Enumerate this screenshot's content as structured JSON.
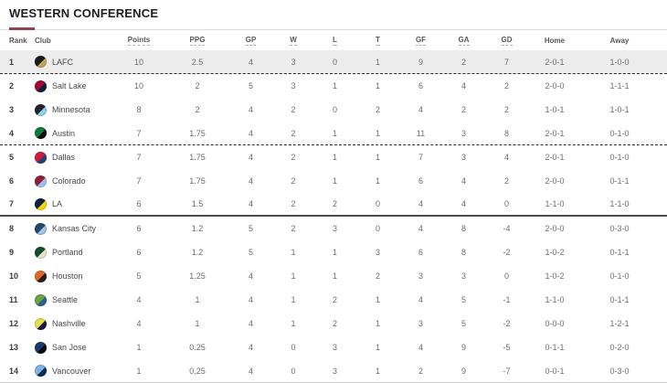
{
  "title": "WESTERN CONFERENCE",
  "accent_color": "#96424d",
  "columns": [
    {
      "key": "rank",
      "label": "Rank",
      "sortable": false
    },
    {
      "key": "club",
      "label": "Club",
      "sortable": false
    },
    {
      "key": "points",
      "label": "Points",
      "sortable": true
    },
    {
      "key": "ppg",
      "label": "PPG",
      "sortable": true
    },
    {
      "key": "gp",
      "label": "GP",
      "sortable": true
    },
    {
      "key": "w",
      "label": "W",
      "sortable": true
    },
    {
      "key": "l",
      "label": "L",
      "sortable": true
    },
    {
      "key": "t",
      "label": "T",
      "sortable": true
    },
    {
      "key": "gf",
      "label": "GF",
      "sortable": true
    },
    {
      "key": "ga",
      "label": "GA",
      "sortable": true
    },
    {
      "key": "gd",
      "label": "GD",
      "sortable": true
    },
    {
      "key": "home",
      "label": "Home",
      "sortable": false
    },
    {
      "key": "away",
      "label": "Away",
      "sortable": false
    }
  ],
  "rows": [
    {
      "rank": "1",
      "club": "LAFC",
      "badge": [
        "#1a1a1a",
        "#c8a15a"
      ],
      "points": "10",
      "ppg": "2.5",
      "gp": "4",
      "w": "3",
      "l": "0",
      "t": "1",
      "gf": "9",
      "ga": "2",
      "gd": "7",
      "home": "2-0-1",
      "away": "1-0-0",
      "highlight": true,
      "separator": "dashed"
    },
    {
      "rank": "2",
      "club": "Salt Lake",
      "badge": [
        "#a50531",
        "#0b2240"
      ],
      "points": "10",
      "ppg": "2",
      "gp": "5",
      "w": "3",
      "l": "1",
      "t": "1",
      "gf": "6",
      "ga": "4",
      "gd": "2",
      "home": "2-0-0",
      "away": "1-1-1",
      "highlight": false,
      "separator": ""
    },
    {
      "rank": "3",
      "club": "Minnesota",
      "badge": [
        "#22242c",
        "#8cd2f4"
      ],
      "points": "8",
      "ppg": "2",
      "gp": "4",
      "w": "2",
      "l": "0",
      "t": "2",
      "gf": "4",
      "ga": "2",
      "gd": "2",
      "home": "1-0-1",
      "away": "1-0-1",
      "highlight": false,
      "separator": ""
    },
    {
      "rank": "4",
      "club": "Austin",
      "badge": [
        "#0f7a3a",
        "#0c0c0c"
      ],
      "points": "7",
      "ppg": "1.75",
      "gp": "4",
      "w": "2",
      "l": "1",
      "t": "1",
      "gf": "11",
      "ga": "3",
      "gd": "8",
      "home": "2-0-1",
      "away": "0-1-0",
      "highlight": false,
      "separator": "dashed"
    },
    {
      "rank": "5",
      "club": "Dallas",
      "badge": [
        "#d11a3d",
        "#2a4076"
      ],
      "points": "7",
      "ppg": "1.75",
      "gp": "4",
      "w": "2",
      "l": "1",
      "t": "1",
      "gf": "7",
      "ga": "3",
      "gd": "4",
      "home": "2-0-1",
      "away": "0-1-0",
      "highlight": false,
      "separator": ""
    },
    {
      "rank": "6",
      "club": "Colorado",
      "badge": [
        "#8f1d3c",
        "#9cc2ea"
      ],
      "points": "7",
      "ppg": "1.75",
      "gp": "4",
      "w": "2",
      "l": "1",
      "t": "1",
      "gf": "6",
      "ga": "4",
      "gd": "2",
      "home": "2-0-0",
      "away": "0-1-1",
      "highlight": false,
      "separator": ""
    },
    {
      "rank": "7",
      "club": "LA",
      "badge": [
        "#0b2240",
        "#ffd200"
      ],
      "points": "6",
      "ppg": "1.5",
      "gp": "4",
      "w": "2",
      "l": "2",
      "t": "0",
      "gf": "4",
      "ga": "4",
      "gd": "0",
      "home": "1-1-0",
      "away": "1-1-0",
      "highlight": false,
      "separator": "solid"
    },
    {
      "rank": "8",
      "club": "Kansas City",
      "badge": [
        "#24476c",
        "#a3c1e0"
      ],
      "points": "6",
      "ppg": "1.2",
      "gp": "5",
      "w": "2",
      "l": "3",
      "t": "0",
      "gf": "4",
      "ga": "8",
      "gd": "-4",
      "home": "2-0-0",
      "away": "0-3-0",
      "highlight": false,
      "separator": ""
    },
    {
      "rank": "9",
      "club": "Portland",
      "badge": [
        "#0d4d2b",
        "#e9e3c2"
      ],
      "points": "6",
      "ppg": "1.2",
      "gp": "5",
      "w": "1",
      "l": "1",
      "t": "3",
      "gf": "6",
      "ga": "8",
      "gd": "-2",
      "home": "1-0-2",
      "away": "0-1-1",
      "highlight": false,
      "separator": ""
    },
    {
      "rank": "10",
      "club": "Houston",
      "badge": [
        "#e0662a",
        "#241f1f"
      ],
      "points": "5",
      "ppg": "1.25",
      "gp": "4",
      "w": "1",
      "l": "1",
      "t": "2",
      "gf": "3",
      "ga": "3",
      "gd": "0",
      "home": "1-0-2",
      "away": "0-1-0",
      "highlight": false,
      "separator": ""
    },
    {
      "rank": "11",
      "club": "Seattle",
      "badge": [
        "#6aa544",
        "#2c5e8f"
      ],
      "points": "4",
      "ppg": "1",
      "gp": "4",
      "w": "1",
      "l": "2",
      "t": "1",
      "gf": "4",
      "ga": "5",
      "gd": "-1",
      "home": "1-1-0",
      "away": "0-1-1",
      "highlight": false,
      "separator": ""
    },
    {
      "rank": "12",
      "club": "Nashville",
      "badge": [
        "#e6df4a",
        "#1f1646"
      ],
      "points": "4",
      "ppg": "1",
      "gp": "4",
      "w": "1",
      "l": "2",
      "t": "1",
      "gf": "3",
      "ga": "5",
      "gd": "-2",
      "home": "0-0-0",
      "away": "1-2-1",
      "highlight": false,
      "separator": ""
    },
    {
      "rank": "13",
      "club": "San Jose",
      "badge": [
        "#1b3a6b",
        "#0c0c0c"
      ],
      "points": "1",
      "ppg": "0.25",
      "gp": "4",
      "w": "0",
      "l": "3",
      "t": "1",
      "gf": "4",
      "ga": "9",
      "gd": "-5",
      "home": "0-1-1",
      "away": "0-2-0",
      "highlight": false,
      "separator": ""
    },
    {
      "rank": "14",
      "club": "Vancouver",
      "badge": [
        "#7fb2e5",
        "#0b2c56"
      ],
      "points": "1",
      "ppg": "0.25",
      "gp": "4",
      "w": "0",
      "l": "3",
      "t": "1",
      "gf": "2",
      "ga": "9",
      "gd": "-7",
      "home": "0-0-1",
      "away": "0-3-0",
      "highlight": false,
      "separator": "light"
    }
  ]
}
